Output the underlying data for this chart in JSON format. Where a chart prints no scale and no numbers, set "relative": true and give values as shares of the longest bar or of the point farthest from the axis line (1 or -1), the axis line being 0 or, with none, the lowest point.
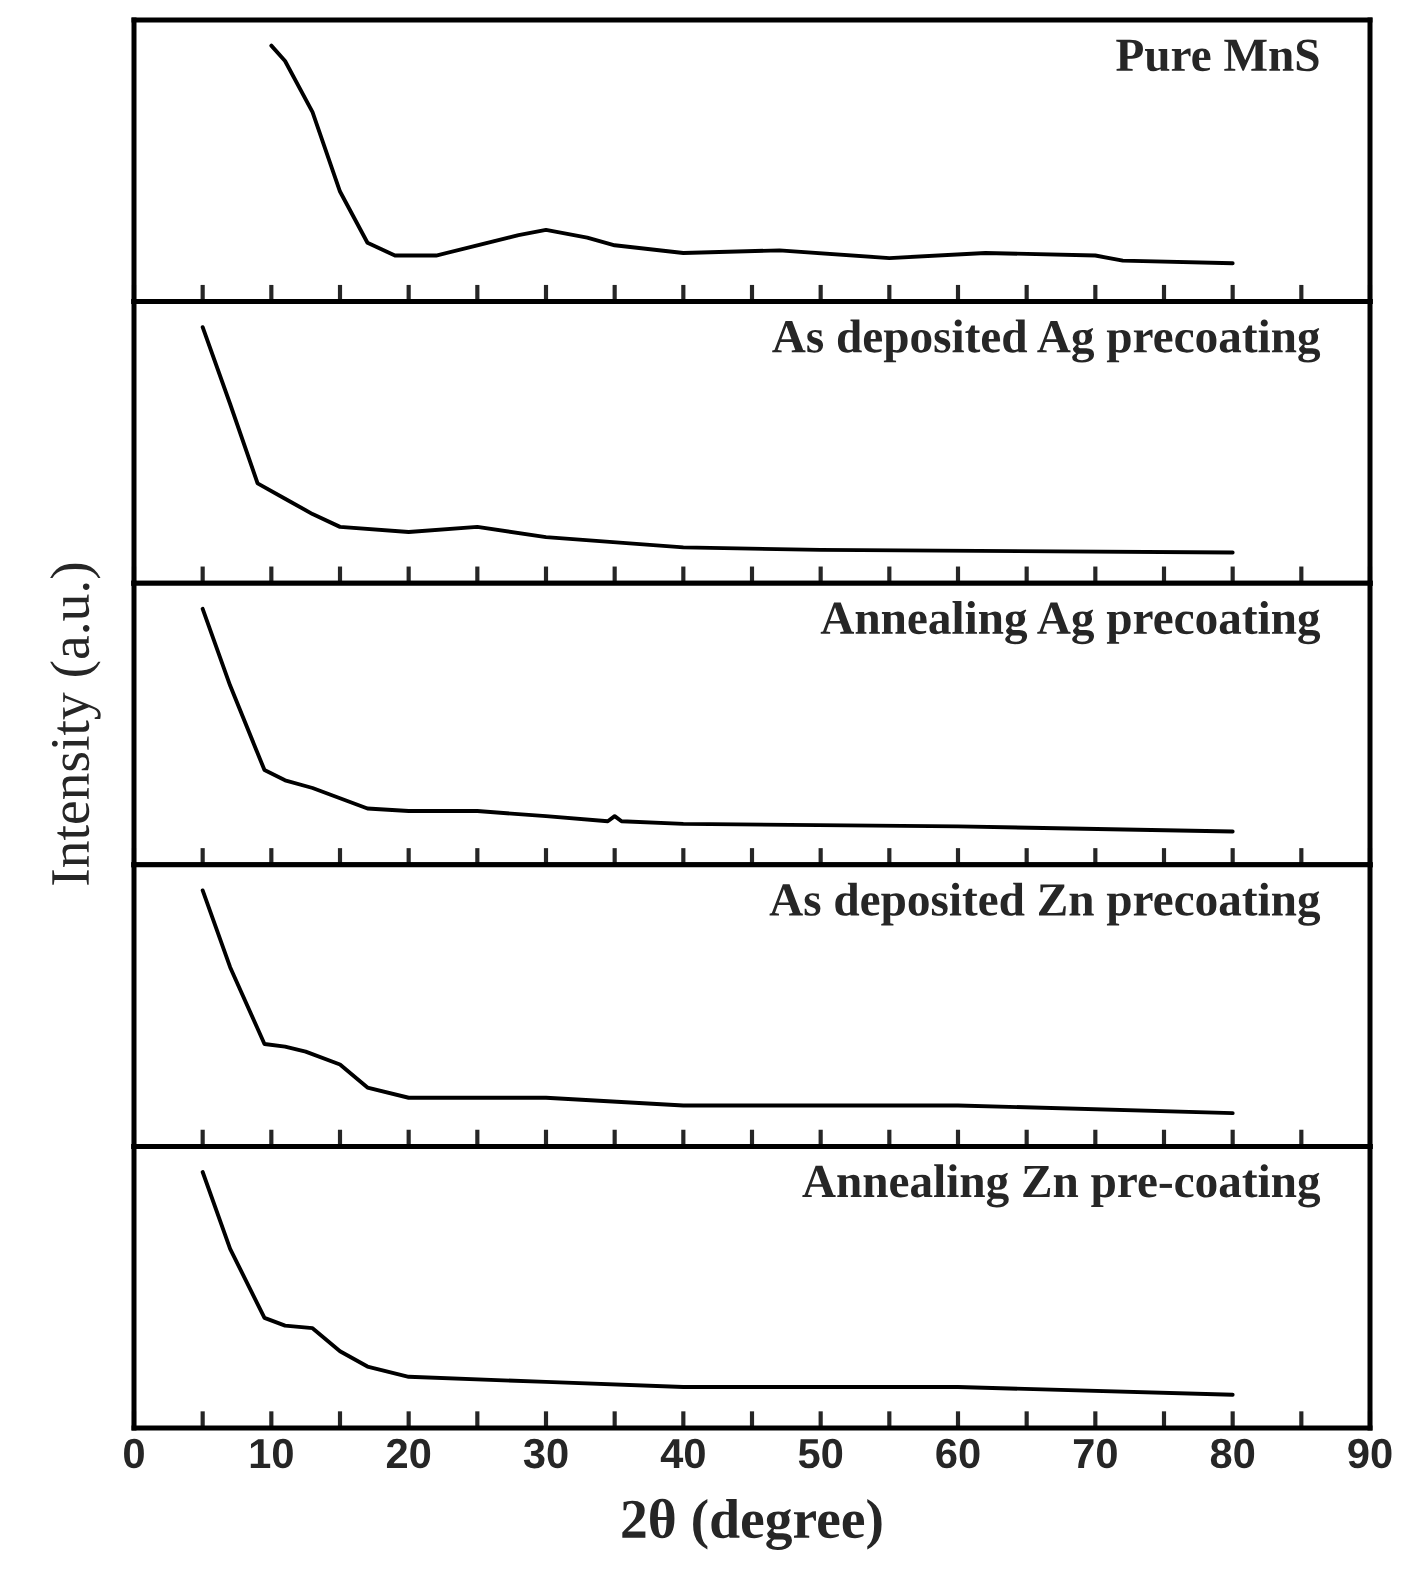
{
  "chart_data": [
    {
      "type": "line",
      "relative": true,
      "tick_labels": false,
      "xlim": [
        0,
        90
      ],
      "xticks": [
        0,
        {
          "value": 5,
          "label": null
        },
        10,
        {
          "value": 15,
          "label": null
        },
        20,
        {
          "value": 25,
          "label": null
        },
        30,
        {
          "value": 35,
          "label": null
        },
        40,
        {
          "value": 45,
          "label": null
        },
        50,
        {
          "value": 55,
          "label": null
        },
        60,
        {
          "value": 65,
          "label": null
        },
        70,
        {
          "value": 75,
          "label": null
        },
        80,
        {
          "value": 85,
          "label": null
        },
        90
      ],
      "series": [
        {
          "name": "Pure MnS",
          "color": "#000000",
          "x": [
            10,
            11,
            13,
            15,
            17,
            19,
            22,
            25,
            28,
            30,
            33,
            35,
            40,
            47,
            55,
            62,
            70,
            72,
            80
          ],
          "values": [
            1,
            0.94,
            0.74,
            0.43,
            0.23,
            0.18,
            0.18,
            0.22,
            0.26,
            0.28,
            0.25,
            0.22,
            0.19,
            0.2,
            0.17,
            0.19,
            0.18,
            0.16,
            0.15
          ]
        }
      ]
    },
    {
      "type": "line",
      "relative": true,
      "tick_labels": false,
      "xlim": [
        0,
        90
      ],
      "xticks": [
        0,
        {
          "value": 5,
          "label": null
        },
        10,
        {
          "value": 15,
          "label": null
        },
        20,
        {
          "value": 25,
          "label": null
        },
        30,
        {
          "value": 35,
          "label": null
        },
        40,
        {
          "value": 45,
          "label": null
        },
        50,
        {
          "value": 55,
          "label": null
        },
        60,
        {
          "value": 65,
          "label": null
        },
        70,
        {
          "value": 75,
          "label": null
        },
        80,
        {
          "value": 85,
          "label": null
        },
        90
      ],
      "series": [
        {
          "name": "As deposited Ag precoating",
          "color": "#000000",
          "x": [
            5,
            7,
            9,
            11,
            13,
            15,
            20,
            25,
            30,
            40,
            50,
            80
          ],
          "values": [
            1,
            0.7,
            0.39,
            0.33,
            0.27,
            0.22,
            0.2,
            0.22,
            0.18,
            0.14,
            0.13,
            0.12
          ]
        }
      ]
    },
    {
      "type": "line",
      "relative": true,
      "tick_labels": false,
      "ylabel": "Intensity (a.u.)",
      "xlim": [
        0,
        90
      ],
      "xticks": [
        0,
        {
          "value": 5,
          "label": null
        },
        10,
        {
          "value": 15,
          "label": null
        },
        20,
        {
          "value": 25,
          "label": null
        },
        30,
        {
          "value": 35,
          "label": null
        },
        40,
        {
          "value": 45,
          "label": null
        },
        50,
        {
          "value": 55,
          "label": null
        },
        60,
        {
          "value": 65,
          "label": null
        },
        70,
        {
          "value": 75,
          "label": null
        },
        80,
        {
          "value": 85,
          "label": null
        },
        90
      ],
      "series": [
        {
          "name": "Annealing Ag precoating",
          "color": "#000000",
          "x": [
            5,
            7,
            9.5,
            11,
            13,
            15,
            17,
            20,
            25,
            30,
            34.5,
            35,
            35.5,
            40,
            60,
            80
          ],
          "values": [
            1,
            0.7,
            0.37,
            0.33,
            0.3,
            0.26,
            0.22,
            0.21,
            0.21,
            0.19,
            0.17,
            0.19,
            0.17,
            0.16,
            0.15,
            0.13
          ]
        }
      ]
    },
    {
      "type": "line",
      "relative": true,
      "tick_labels": false,
      "xlim": [
        0,
        90
      ],
      "xticks": [
        0,
        {
          "value": 5,
          "label": null
        },
        10,
        {
          "value": 15,
          "label": null
        },
        20,
        {
          "value": 25,
          "label": null
        },
        30,
        {
          "value": 35,
          "label": null
        },
        40,
        {
          "value": 45,
          "label": null
        },
        50,
        {
          "value": 55,
          "label": null
        },
        60,
        {
          "value": 65,
          "label": null
        },
        70,
        {
          "value": 75,
          "label": null
        },
        80,
        {
          "value": 85,
          "label": null
        },
        90
      ],
      "series": [
        {
          "name": "As deposited Zn precoating",
          "color": "#000000",
          "x": [
            5,
            7,
            9.5,
            11,
            12.5,
            15,
            17,
            20,
            30,
            40,
            60,
            80
          ],
          "values": [
            1,
            0.7,
            0.4,
            0.39,
            0.37,
            0.32,
            0.23,
            0.19,
            0.19,
            0.16,
            0.16,
            0.13
          ]
        }
      ]
    },
    {
      "type": "line",
      "relative": true,
      "tick_labels": "x",
      "xlabel": "2θ (degree)",
      "xlim": [
        0,
        90
      ],
      "xticks": [
        0,
        {
          "value": 5,
          "label": null
        },
        10,
        {
          "value": 15,
          "label": null
        },
        20,
        {
          "value": 25,
          "label": null
        },
        30,
        {
          "value": 35,
          "label": null
        },
        40,
        {
          "value": 45,
          "label": null
        },
        50,
        {
          "value": 55,
          "label": null
        },
        60,
        {
          "value": 65,
          "label": null
        },
        70,
        {
          "value": 75,
          "label": null
        },
        80,
        {
          "value": 85,
          "label": null
        },
        90
      ],
      "series": [
        {
          "name": "Annealing Zn pre-coating",
          "color": "#000000",
          "x": [
            5,
            7,
            9.5,
            11,
            13,
            15,
            17,
            20,
            30,
            40,
            60,
            80
          ],
          "values": [
            1,
            0.7,
            0.43,
            0.4,
            0.39,
            0.3,
            0.24,
            0.2,
            0.18,
            0.16,
            0.16,
            0.13
          ]
        }
      ]
    }
  ]
}
